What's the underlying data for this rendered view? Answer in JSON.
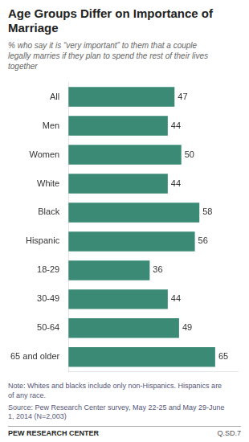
{
  "chart_data": {
    "type": "bar",
    "orientation": "horizontal",
    "title": "Age Groups Differ on Importance of\nMarriage",
    "subtitle": "% who say it is “very important” to them that a couple\nlegally marries if they plan to spend the rest of their lives\ntogether",
    "categories": [
      "All",
      "Men",
      "Women",
      "White",
      "Black",
      "Hispanic",
      "18-29",
      "30-49",
      "50-64",
      "65 and older"
    ],
    "values": [
      47,
      44,
      50,
      44,
      58,
      56,
      36,
      44,
      49,
      65
    ],
    "color": "#3a8a75",
    "xlim": [
      0,
      75
    ],
    "grid": false,
    "tick_labels": "y",
    "data_labels": true,
    "annotations": [
      "Note: Whites and blacks include only non-Hispanics. Hispanics are\nof any race.",
      "Source: Pew Research Center survey, May 22-25 and May 29-June\n1, 2014 (N=2,003)",
      "PEW RESEARCH CENTER",
      "Q.SD.7"
    ]
  }
}
